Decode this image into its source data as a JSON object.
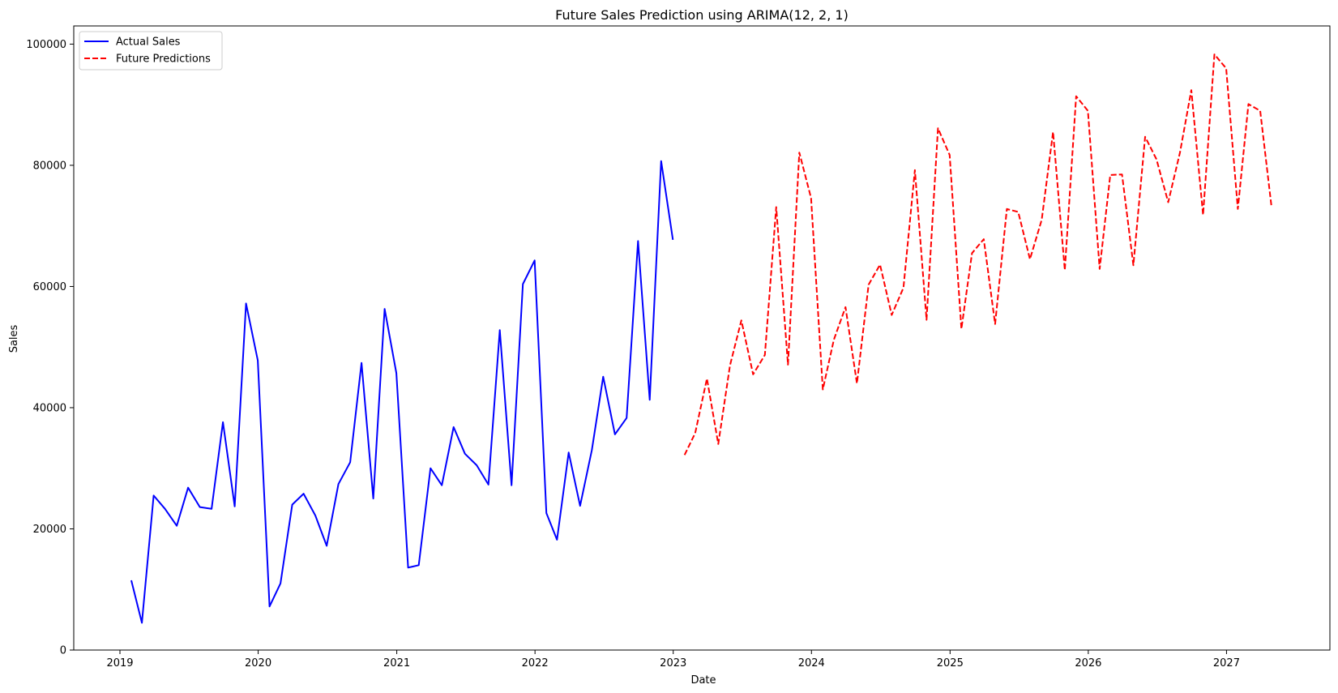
{
  "chart_data": {
    "type": "line",
    "title": "Future Sales Prediction using ARIMA(12, 2, 1)",
    "xlabel": "Date",
    "ylabel": "Sales",
    "xlim": [
      "2018-09-01",
      "2027-10-01"
    ],
    "ylim": [
      0,
      103000
    ],
    "x_ticks": [
      "2019",
      "2020",
      "2021",
      "2022",
      "2023",
      "2024",
      "2025",
      "2026",
      "2027"
    ],
    "y_ticks": [
      0,
      20000,
      40000,
      60000,
      80000,
      100000
    ],
    "grid": false,
    "legend_position": "top-left",
    "series": [
      {
        "name": "Actual Sales",
        "color": "#0000ff",
        "style": "solid",
        "x": [
          "2019-01-31",
          "2019-02-28",
          "2019-03-31",
          "2019-04-30",
          "2019-05-31",
          "2019-06-30",
          "2019-07-31",
          "2019-08-31",
          "2019-09-30",
          "2019-10-31",
          "2019-11-30",
          "2019-12-31",
          "2020-01-31",
          "2020-02-29",
          "2020-03-31",
          "2020-04-30",
          "2020-05-31",
          "2020-06-30",
          "2020-07-31",
          "2020-08-31",
          "2020-09-30",
          "2020-10-31",
          "2020-11-30",
          "2020-12-31",
          "2021-01-31",
          "2021-02-28",
          "2021-03-31",
          "2021-04-30",
          "2021-05-31",
          "2021-06-30",
          "2021-07-31",
          "2021-08-31",
          "2021-09-30",
          "2021-10-31",
          "2021-11-30",
          "2021-12-31",
          "2022-01-31",
          "2022-02-28",
          "2022-03-31",
          "2022-04-30",
          "2022-05-31",
          "2022-06-30",
          "2022-07-31",
          "2022-08-31",
          "2022-09-30",
          "2022-10-31",
          "2022-11-30",
          "2022-12-31"
        ],
        "values": [
          11500,
          4500,
          25500,
          23300,
          20500,
          26800,
          23600,
          23300,
          37600,
          23700,
          57200,
          47800,
          7200,
          11000,
          24000,
          25800,
          22200,
          17200,
          27400,
          31000,
          47400,
          25000,
          56300,
          45700,
          13600,
          14000,
          30000,
          27200,
          36800,
          32400,
          30500,
          27300,
          52800,
          27200,
          60400,
          64300,
          22600,
          18200,
          32600,
          23800,
          33000,
          45100,
          35600,
          38300,
          67500,
          41300,
          80700,
          67700
        ]
      },
      {
        "name": "Future Predictions",
        "color": "#ff0000",
        "style": "dashed",
        "x": [
          "2023-01-31",
          "2023-02-28",
          "2023-03-31",
          "2023-04-30",
          "2023-05-31",
          "2023-06-30",
          "2023-07-31",
          "2023-08-31",
          "2023-09-30",
          "2023-10-31",
          "2023-11-30",
          "2023-12-31",
          "2024-01-31",
          "2024-02-29",
          "2024-03-31",
          "2024-04-30",
          "2024-05-31",
          "2024-06-30",
          "2024-07-31",
          "2024-08-31",
          "2024-09-30",
          "2024-10-31",
          "2024-11-30",
          "2024-12-31",
          "2025-01-31",
          "2025-02-28",
          "2025-03-31",
          "2025-04-30",
          "2025-05-31",
          "2025-06-30",
          "2025-07-31",
          "2025-08-31",
          "2025-09-30",
          "2025-10-31",
          "2025-11-30",
          "2025-12-31",
          "2026-01-31",
          "2026-02-28",
          "2026-03-31",
          "2026-04-30",
          "2026-05-31",
          "2026-06-30",
          "2026-07-31",
          "2026-08-31",
          "2026-09-30",
          "2026-10-31",
          "2026-11-30",
          "2026-12-31",
          "2027-01-31",
          "2027-02-28",
          "2027-03-31",
          "2027-04-30"
        ],
        "values": [
          32200,
          35800,
          44800,
          34000,
          47000,
          54400,
          45500,
          48700,
          73100,
          47100,
          82100,
          74600,
          43000,
          51200,
          56600,
          44000,
          60300,
          63600,
          55300,
          59800,
          79200,
          54500,
          86100,
          81700,
          53000,
          65500,
          67800,
          53800,
          72800,
          72300,
          64500,
          71000,
          85500,
          62700,
          91400,
          89000,
          62900,
          78400,
          78500,
          63500,
          84700,
          81000,
          73900,
          82100,
          92400,
          71800,
          98300,
          96000,
          72800,
          90100,
          89000,
          73100
        ]
      }
    ]
  }
}
